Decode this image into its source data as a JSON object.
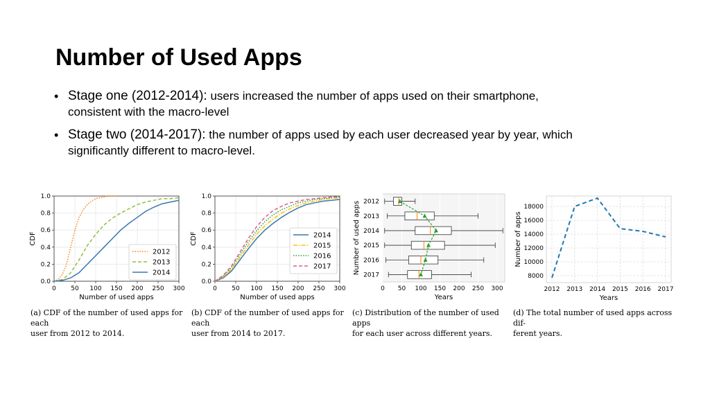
{
  "slide": {
    "title": "Number of Used Apps",
    "bullets": [
      {
        "lead": "Stage one (2012-2014):",
        "rest": " users increased the number of apps used on their smartphone,",
        "cont": "consistent with the macro-level"
      },
      {
        "lead": "Stage two (2014-2017):",
        "rest": " the number of apps used by each user decreased year by year, which",
        "cont": "significantly different to macro-level."
      }
    ]
  },
  "captions": [
    {
      "label": "(a)",
      "line1": "CDF of the number of used apps for each",
      "line2": "user from 2012 to 2014."
    },
    {
      "label": "(b)",
      "line1": "CDF of the number of used apps for each",
      "line2": "user from 2014 to 2017."
    },
    {
      "label": "(c)",
      "line1": "Distribution of the number of used apps",
      "line2": "for each user across different years."
    },
    {
      "label": "(d)",
      "line1": "The total number of used apps across dif-",
      "line2": "ferent years."
    }
  ],
  "colors": {
    "c2012": "#ff7f0e",
    "c2013": "#8fbf3f",
    "c2014": "#3a76af",
    "c2015": "#ffbf00",
    "c2016": "#2ca02c",
    "c2017": "#d35f9a"
  },
  "chart_data": [
    {
      "type": "line",
      "xlabel": "Number of used apps",
      "ylabel": "CDF",
      "xlim": [
        0,
        300
      ],
      "ylim": [
        0,
        1.0
      ],
      "xticks": [
        "0",
        "50",
        "100",
        "150",
        "200",
        "250",
        "300"
      ],
      "yticks": [
        "0.0",
        "0.2",
        "0.4",
        "0.6",
        "0.8",
        "1.0"
      ],
      "legend": "bottom-right",
      "grid": true,
      "series": [
        {
          "name": "2012",
          "style": "dotted",
          "color": "#ff7f0e",
          "x": [
            0,
            10,
            20,
            30,
            40,
            50,
            60,
            70,
            80,
            90,
            100,
            110,
            120,
            130,
            150
          ],
          "y": [
            0,
            0.02,
            0.08,
            0.2,
            0.4,
            0.6,
            0.75,
            0.84,
            0.9,
            0.94,
            0.97,
            0.98,
            0.99,
            1.0,
            1.0
          ]
        },
        {
          "name": "2013",
          "style": "dashed",
          "color": "#8fbf3f",
          "x": [
            0,
            20,
            40,
            60,
            80,
            100,
            120,
            140,
            160,
            180,
            200,
            220,
            240,
            260,
            280,
            300
          ],
          "y": [
            0,
            0.02,
            0.1,
            0.25,
            0.42,
            0.55,
            0.66,
            0.74,
            0.8,
            0.85,
            0.9,
            0.93,
            0.95,
            0.97,
            0.97,
            0.98
          ]
        },
        {
          "name": "2014",
          "style": "solid",
          "color": "#3a76af",
          "x": [
            0,
            20,
            40,
            60,
            80,
            100,
            120,
            140,
            160,
            180,
            200,
            220,
            240,
            260,
            280,
            300
          ],
          "y": [
            0,
            0.01,
            0.04,
            0.1,
            0.2,
            0.3,
            0.4,
            0.5,
            0.6,
            0.68,
            0.75,
            0.82,
            0.87,
            0.91,
            0.93,
            0.95
          ]
        }
      ]
    },
    {
      "type": "line",
      "xlabel": "Number of used apps",
      "ylabel": "CDF",
      "xlim": [
        0,
        300
      ],
      "ylim": [
        0,
        1.0
      ],
      "xticks": [
        "0",
        "50",
        "100",
        "150",
        "200",
        "250",
        "300"
      ],
      "yticks": [
        "0.0",
        "0.2",
        "0.4",
        "0.6",
        "0.8",
        "1.0"
      ],
      "legend": "center-right",
      "grid": true,
      "series": [
        {
          "name": "2014",
          "style": "solid",
          "color": "#3a76af",
          "x": [
            0,
            20,
            40,
            60,
            80,
            100,
            120,
            140,
            160,
            180,
            200,
            220,
            240,
            260,
            280,
            300
          ],
          "y": [
            0,
            0.04,
            0.12,
            0.25,
            0.38,
            0.5,
            0.6,
            0.68,
            0.75,
            0.81,
            0.86,
            0.9,
            0.92,
            0.94,
            0.95,
            0.96
          ]
        },
        {
          "name": "2015",
          "style": "dashdot",
          "color": "#ffbf00",
          "x": [
            0,
            20,
            40,
            60,
            80,
            100,
            120,
            140,
            160,
            180,
            200,
            220,
            240,
            260,
            280,
            300
          ],
          "y": [
            0,
            0.05,
            0.14,
            0.28,
            0.42,
            0.55,
            0.65,
            0.73,
            0.8,
            0.85,
            0.89,
            0.92,
            0.94,
            0.96,
            0.97,
            0.98
          ]
        },
        {
          "name": "2016",
          "style": "dotted",
          "color": "#2ca02c",
          "x": [
            0,
            20,
            40,
            60,
            80,
            100,
            120,
            140,
            160,
            180,
            200,
            220,
            240,
            260,
            280,
            300
          ],
          "y": [
            0,
            0.06,
            0.16,
            0.31,
            0.46,
            0.59,
            0.7,
            0.78,
            0.84,
            0.88,
            0.92,
            0.94,
            0.96,
            0.97,
            0.98,
            0.99
          ]
        },
        {
          "name": "2017",
          "style": "dashed",
          "color": "#d35f9a",
          "x": [
            0,
            20,
            40,
            60,
            80,
            100,
            120,
            140,
            160,
            180,
            200,
            220,
            240,
            260,
            280,
            300
          ],
          "y": [
            0,
            0.07,
            0.18,
            0.34,
            0.5,
            0.64,
            0.75,
            0.83,
            0.88,
            0.92,
            0.94,
            0.96,
            0.97,
            0.98,
            0.99,
            0.99
          ]
        }
      ]
    },
    {
      "type": "box",
      "xlabel": "Years",
      "ylabel": "Number of used apps",
      "xlim": [
        0,
        320
      ],
      "xticks": [
        "0",
        "50",
        "100",
        "150",
        "200",
        "250",
        "300"
      ],
      "categories": [
        "2012",
        "2013",
        "2014",
        "2015",
        "2016",
        "2017"
      ],
      "boxes": [
        {
          "year": "2012",
          "whislo": 5,
          "q1": 28,
          "median": 42,
          "q3": 50,
          "whishi": 85,
          "mean": 45
        },
        {
          "year": "2013",
          "whislo": 12,
          "q1": 58,
          "median": 90,
          "q3": 135,
          "whishi": 250,
          "mean": 110
        },
        {
          "year": "2014",
          "whislo": 5,
          "q1": 85,
          "median": 125,
          "q3": 180,
          "whishi": 315,
          "mean": 140
        },
        {
          "year": "2015",
          "whislo": 5,
          "q1": 75,
          "median": 108,
          "q3": 162,
          "whishi": 295,
          "mean": 120
        },
        {
          "year": "2016",
          "whislo": 8,
          "q1": 68,
          "median": 100,
          "q3": 145,
          "whishi": 265,
          "mean": 112
        },
        {
          "year": "2017",
          "whislo": 15,
          "q1": 65,
          "median": 95,
          "q3": 128,
          "whishi": 232,
          "mean": 100
        }
      ]
    },
    {
      "type": "line",
      "xlabel": "Years",
      "ylabel": "Number of apps",
      "ylim": [
        7000,
        19500
      ],
      "yticks": [
        "8000",
        "10000",
        "12000",
        "14000",
        "16000",
        "18000"
      ],
      "categories": [
        "2012",
        "2013",
        "2014",
        "2015",
        "2016",
        "2017"
      ],
      "grid": true,
      "series": [
        {
          "name": "",
          "style": "dashed",
          "color": "#1f77b4",
          "values": [
            7700,
            18000,
            19200,
            14800,
            14400,
            13600
          ]
        }
      ]
    }
  ]
}
